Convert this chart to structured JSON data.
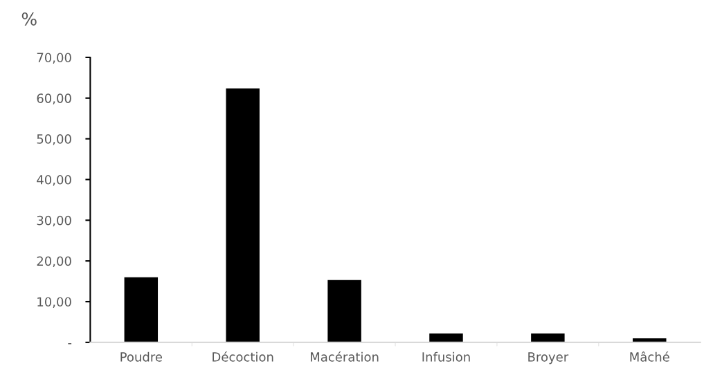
{
  "chart_data": {
    "type": "bar",
    "ylabel": "%",
    "categories": [
      "Poudre",
      "Décoction",
      "Macération",
      "Infusion",
      "Broyer",
      "Mâché"
    ],
    "values": [
      16.0,
      62.4,
      15.3,
      2.2,
      2.2,
      1.0
    ],
    "color": "#000000",
    "ylim": [
      0,
      70
    ],
    "yticks": [
      {
        "value": 0,
        "label": "-"
      },
      {
        "value": 10,
        "label": "10,00"
      },
      {
        "value": 20,
        "label": "20,00"
      },
      {
        "value": 30,
        "label": "30,00"
      },
      {
        "value": 40,
        "label": "40,00"
      },
      {
        "value": 50,
        "label": "50,00"
      },
      {
        "value": 60,
        "label": "60,00"
      },
      {
        "value": 70,
        "label": "70,00"
      }
    ],
    "grid": false,
    "legend": false
  }
}
